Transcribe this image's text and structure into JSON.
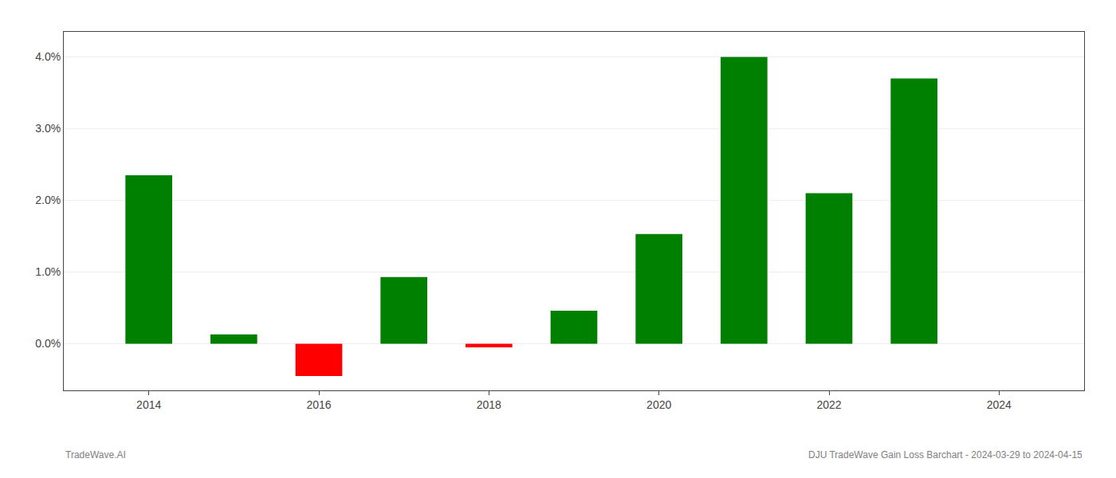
{
  "chart_data": {
    "type": "bar",
    "x": [
      2014,
      2015,
      2016,
      2017,
      2018,
      2019,
      2020,
      2021,
      2022,
      2023
    ],
    "values": [
      2.35,
      0.13,
      -0.45,
      0.93,
      -0.05,
      0.46,
      1.53,
      4.0,
      2.1,
      3.7
    ],
    "colors": [
      "#008000",
      "#008000",
      "#FF0000",
      "#008000",
      "#FF0000",
      "#008000",
      "#008000",
      "#008000",
      "#008000",
      "#008000"
    ],
    "xlim": [
      2013.0,
      2025.0
    ],
    "xticks": [
      2014,
      2016,
      2018,
      2020,
      2022,
      2024
    ],
    "ylim": [
      -0.65,
      4.35
    ],
    "yticks": [
      {
        "value": 0.0,
        "label": "0.0%"
      },
      {
        "value": 1.0,
        "label": "1.0%"
      },
      {
        "value": 2.0,
        "label": "2.0%"
      },
      {
        "value": 3.0,
        "label": "3.0%"
      },
      {
        "value": 4.0,
        "label": "4.0%"
      }
    ],
    "grid": "y",
    "annotations": [
      "TradeWave.AI",
      "DJU TradeWave Gain Loss Barchart - 2024-03-29 to 2024-04-15"
    ]
  }
}
